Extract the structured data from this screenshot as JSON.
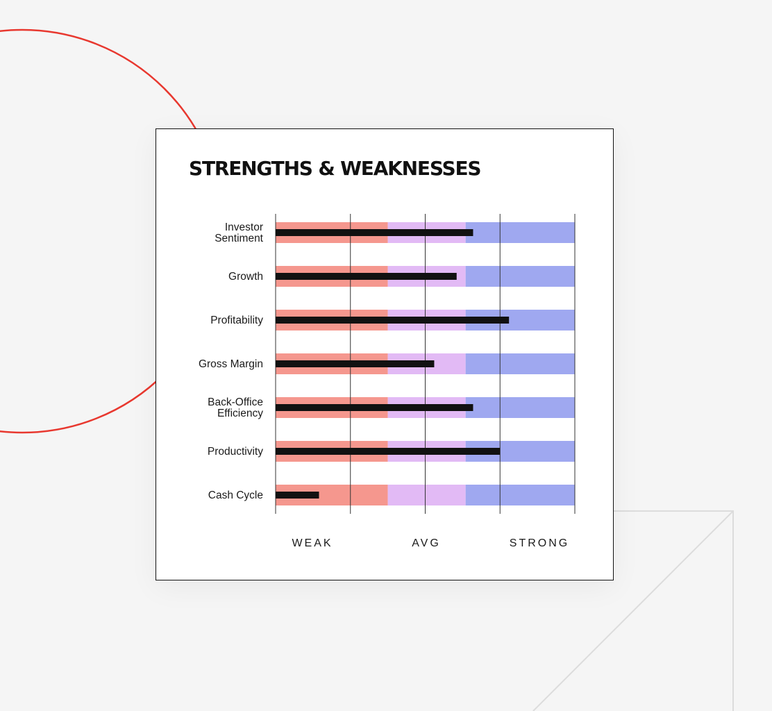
{
  "chart_data": {
    "type": "bar",
    "title": "STRENGTHS & WEAKNESSES",
    "categories": [
      [
        "Investor",
        "Sentiment"
      ],
      [
        "Growth"
      ],
      [
        "Profitability"
      ],
      [
        "Gross Margin"
      ],
      [
        "Back-Office",
        "Efficiency"
      ],
      [
        "Productivity"
      ],
      [
        "Cash Cycle"
      ]
    ],
    "values": [
      66,
      60.5,
      78,
      53,
      66,
      75,
      14.5
    ],
    "xlim": [
      0,
      100
    ],
    "grid": true,
    "legend": "none",
    "bands": [
      {
        "name": "WEAK",
        "from": 0,
        "to": 37.5,
        "color": "#f5978e"
      },
      {
        "name": "AVG",
        "from": 37.5,
        "to": 63.5,
        "color": "#e2baf5"
      },
      {
        "name": "STRONG",
        "from": 63.5,
        "to": 100,
        "color": "#9fa8f0"
      }
    ],
    "zone_labels": [
      "WEAK",
      "AVG",
      "STRONG"
    ],
    "bar_color": "#111111"
  }
}
